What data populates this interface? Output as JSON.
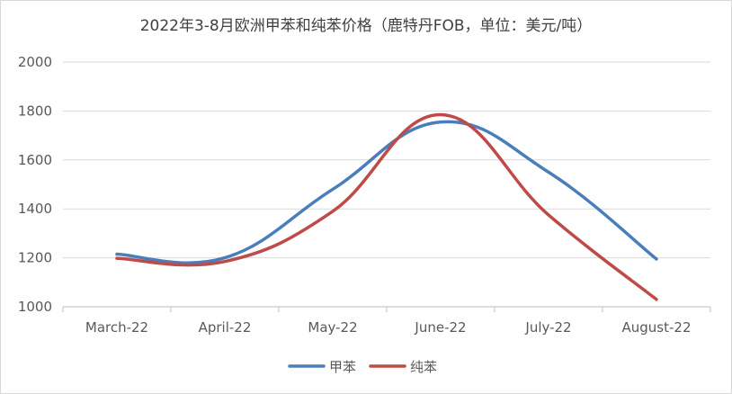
{
  "chart_data": {
    "type": "line",
    "title": "2022年3-8月欧洲甲苯和纯苯价格（鹿特丹FOB，单位：美元/吨）",
    "categories": [
      "March-22",
      "April-22",
      "May-22",
      "June-22",
      "July-22",
      "August-22"
    ],
    "ylim": [
      1000,
      2000
    ],
    "yticks": [
      1000,
      1200,
      1400,
      1600,
      1800,
      2000
    ],
    "grid": true,
    "legend_position": "bottom",
    "series": [
      {
        "name": "甲苯",
        "color": "#4a7ebb",
        "values": [
          1215,
          1200,
          1480,
          1755,
          1550,
          1195
        ]
      },
      {
        "name": "纯苯",
        "color": "#be4b48",
        "values": [
          1198,
          1185,
          1390,
          1785,
          1375,
          1030
        ]
      }
    ]
  }
}
